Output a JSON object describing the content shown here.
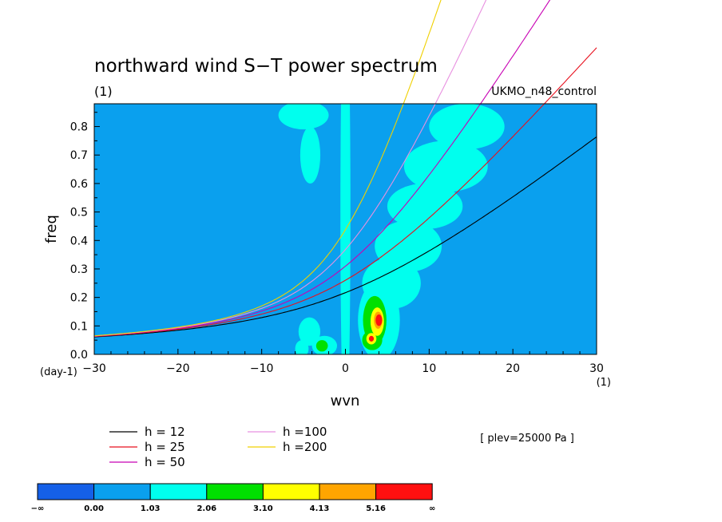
{
  "chart_data": {
    "type": "heatmap",
    "title": "northward wind S−T power spectrum",
    "subtitle": "(1)",
    "dataset_label": "UKMO_n48_control",
    "xlabel": "wvn",
    "ylabel": "freq",
    "x_unit": "(1)",
    "y_unit": "(day-1)",
    "xlim": [
      -30,
      30
    ],
    "ylim": [
      0,
      0.88
    ],
    "x_ticks": [
      -30,
      -20,
      -10,
      0,
      10,
      20,
      30
    ],
    "y_ticks": [
      0.0,
      0.1,
      0.2,
      0.3,
      0.4,
      0.5,
      0.6,
      0.7,
      0.8
    ],
    "x_tick_labels": [
      "−30",
      "−20",
      "−10",
      "0",
      "10",
      "20",
      "30"
    ],
    "y_tick_labels": [
      "0.0",
      "0.1",
      "0.2",
      "0.3",
      "0.4",
      "0.5",
      "0.6",
      "0.7",
      "0.8"
    ],
    "annotation": "[ plev=25000 Pa ]",
    "background_level_color": "#0aa0ee",
    "colorbar": {
      "colors": [
        "#1560e8",
        "#0aa0ee",
        "#00ffee",
        "#00e000",
        "#ffff00",
        "#ffa500",
        "#ff1010"
      ],
      "labels": [
        "−∞",
        "0.00",
        "1.03",
        "2.06",
        "3.10",
        "4.13",
        "5.16",
        "∞"
      ]
    },
    "dispersion_curves": [
      {
        "name": "h = 12",
        "h": 12,
        "color": "#000000"
      },
      {
        "name": "h = 25",
        "h": 25,
        "color": "#e8101e"
      },
      {
        "name": "h = 50",
        "h": 50,
        "color": "#c800b4"
      },
      {
        "name": "h =100",
        "h": 100,
        "color": "#e890e0"
      },
      {
        "name": "h =200",
        "h": 200,
        "color": "#f0d000"
      }
    ],
    "features": [
      {
        "level": 2,
        "x": 0,
        "y": 0.5,
        "w": 0.6,
        "h": 0.8
      },
      {
        "level": 2,
        "x": -5,
        "y": 0.84,
        "w": 3.0,
        "h": 0.05
      },
      {
        "level": 2,
        "x": -4.2,
        "y": 0.7,
        "w": 1.2,
        "h": 0.1
      },
      {
        "level": 2,
        "x": -4.3,
        "y": 0.08,
        "w": 1.3,
        "h": 0.05
      },
      {
        "level": 2,
        "x": -5.2,
        "y": 0.02,
        "w": 0.8,
        "h": 0.03
      },
      {
        "level": 2,
        "x": -2.5,
        "y": 0.03,
        "w": 1.5,
        "h": 0.035
      },
      {
        "level": 3,
        "x": -2.8,
        "y": 0.03,
        "w": 0.7,
        "h": 0.02
      },
      {
        "level": 2,
        "x": 4.0,
        "y": 0.12,
        "w": 2.5,
        "h": 0.14
      },
      {
        "level": 2,
        "x": 5.5,
        "y": 0.25,
        "w": 3.5,
        "h": 0.09
      },
      {
        "level": 2,
        "x": 7.5,
        "y": 0.38,
        "w": 4.0,
        "h": 0.09
      },
      {
        "level": 2,
        "x": 9.5,
        "y": 0.52,
        "w": 4.5,
        "h": 0.08
      },
      {
        "level": 2,
        "x": 12.0,
        "y": 0.66,
        "w": 5.0,
        "h": 0.09
      },
      {
        "level": 2,
        "x": 14.5,
        "y": 0.8,
        "w": 4.5,
        "h": 0.08
      },
      {
        "level": 3,
        "x": 3.5,
        "y": 0.12,
        "w": 1.4,
        "h": 0.085
      },
      {
        "level": 3,
        "x": 3.2,
        "y": 0.05,
        "w": 1.2,
        "h": 0.035
      },
      {
        "level": 4,
        "x": 3.8,
        "y": 0.115,
        "w": 0.8,
        "h": 0.05
      },
      {
        "level": 4,
        "x": 3.1,
        "y": 0.055,
        "w": 0.6,
        "h": 0.02
      },
      {
        "level": 5,
        "x": 3.9,
        "y": 0.12,
        "w": 0.5,
        "h": 0.03
      },
      {
        "level": 6,
        "x": 4.0,
        "y": 0.12,
        "w": 0.4,
        "h": 0.02
      },
      {
        "level": 6,
        "x": 3.1,
        "y": 0.055,
        "w": 0.3,
        "h": 0.01
      }
    ]
  }
}
